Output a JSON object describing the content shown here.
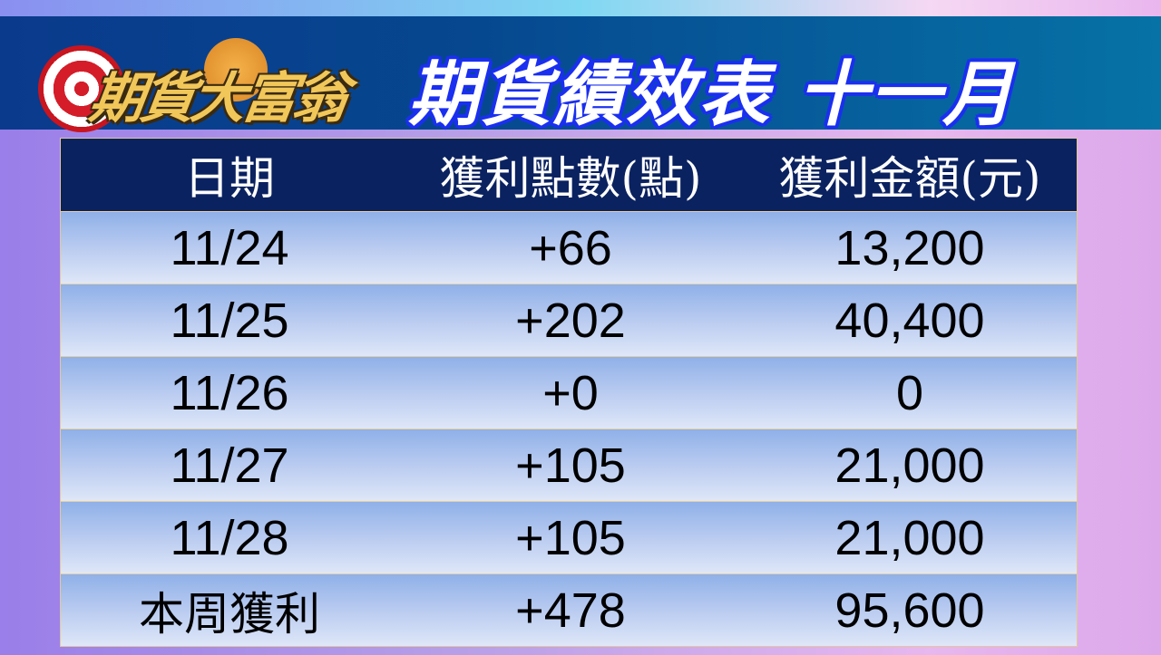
{
  "logo": {
    "text": "期貨大富翁"
  },
  "banner": {
    "title": "期貨績效表 十一月"
  },
  "table": {
    "headers": [
      "日期",
      "獲利點數(點)",
      "獲利金額(元)"
    ],
    "rows": [
      [
        "11/24",
        "+66",
        "13,200"
      ],
      [
        "11/25",
        "+202",
        "40,400"
      ],
      [
        "11/26",
        "+0",
        "0"
      ],
      [
        "11/27",
        "+105",
        "21,000"
      ],
      [
        "11/28",
        "+105",
        "21,000"
      ]
    ],
    "total": [
      "本周獲利",
      "+478",
      "95,600"
    ]
  },
  "colors": {
    "header_bg": "#0b2260",
    "banner_bg": "#06478f",
    "title_outline": "#1a2ff0"
  }
}
